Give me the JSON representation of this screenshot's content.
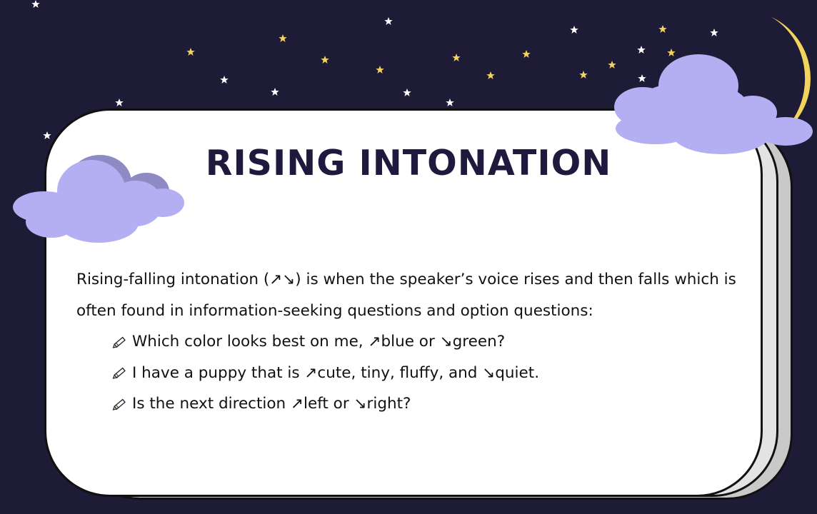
{
  "slide": {
    "title": "RISING INTONATION",
    "paragraph": "Rising-falling intonation (↗↘) is when the speaker’s voice rises and then falls which is often found in information-seeking questions and option questions:",
    "examples": [
      "Which color looks best on me, ↗blue or ↘green?",
      "I have a puppy that is ↗cute, tiny, fluffy, and ↘quiet.",
      "Is the next direction ↗left or ↘right?"
    ],
    "bullet_icon": "pencil-icon"
  },
  "colors": {
    "background": "#1d1b36",
    "card": "#ffffff",
    "title": "#1e1a3d",
    "cloud": "#b3aff2",
    "cloud_shadow": "#8e8bc4",
    "moon": "#f2d35c",
    "star_white": "#ffffff",
    "star_yellow": "#f4d35e"
  }
}
